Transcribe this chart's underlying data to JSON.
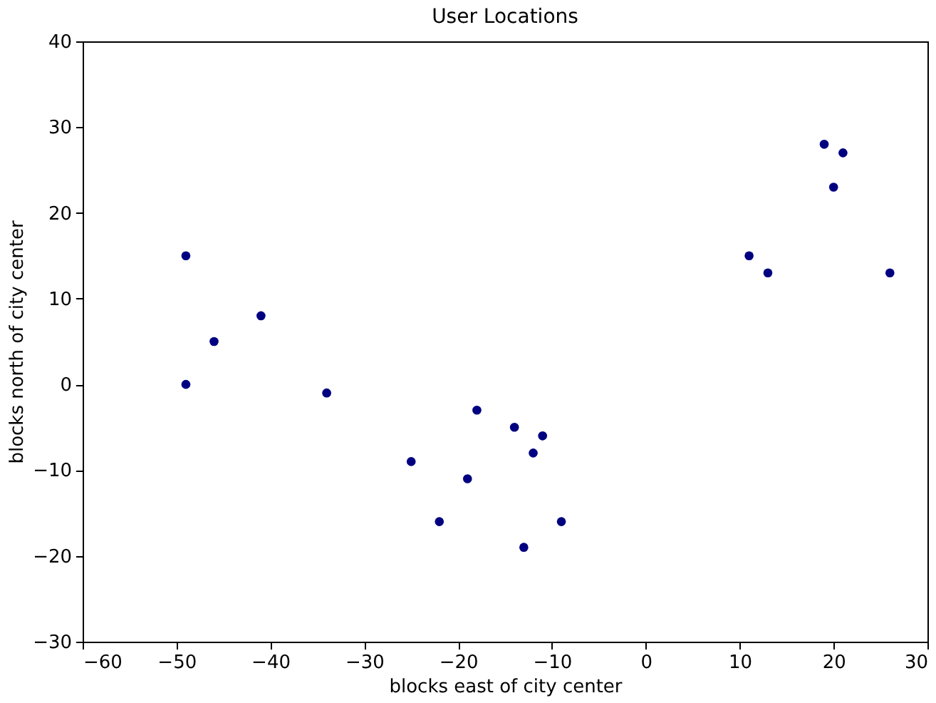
{
  "chart_data": {
    "type": "scatter",
    "title": "User Locations",
    "xlabel": "blocks east of city center",
    "ylabel": "blocks north of city center",
    "x": [
      -49,
      -46,
      -41,
      -49,
      -34,
      -25,
      -22,
      -19,
      -18,
      -14,
      -13,
      -12,
      -11,
      -9,
      11,
      13,
      19,
      20,
      21,
      26
    ],
    "series": [
      {
        "color": "#000080",
        "values": [
          15,
          5,
          8,
          0,
          -1,
          -9,
          -16,
          -11,
          -3,
          -5,
          -19,
          -8,
          -6,
          -16,
          15,
          13,
          28,
          23,
          27,
          13
        ]
      }
    ],
    "xlim": [
      -60,
      30
    ],
    "ylim": [
      -30,
      40
    ],
    "xticks": [
      -60,
      -50,
      -40,
      -30,
      -20,
      -10,
      0,
      10,
      20,
      30
    ],
    "yticks": [
      -30,
      -20,
      -10,
      0,
      10,
      20,
      30,
      40
    ],
    "grid": false
  }
}
